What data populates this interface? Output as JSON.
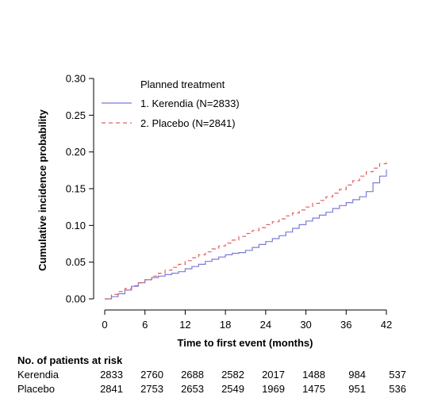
{
  "chart_data": {
    "type": "line",
    "xlabel": "Time to first event (months)",
    "ylabel": "Cumulative incidence probability",
    "xlim": [
      0,
      42
    ],
    "ylim": [
      0,
      0.3
    ],
    "x_ticks": [
      "0",
      "6",
      "12",
      "18",
      "24",
      "30",
      "36",
      "42"
    ],
    "y_ticks": [
      "0.00",
      "0.05",
      "0.10",
      "0.15",
      "0.20",
      "0.25",
      "0.30"
    ],
    "grid": false,
    "legend": {
      "title": "Planned treatment",
      "position": "top-left"
    },
    "series": [
      {
        "name": "1. Kerendia (N=2833)",
        "color": "#7b7bd9",
        "style": "solid",
        "points": [
          [
            0,
            0
          ],
          [
            1,
            0.003
          ],
          [
            2,
            0.007
          ],
          [
            3,
            0.012
          ],
          [
            4,
            0.017
          ],
          [
            5,
            0.022
          ],
          [
            6,
            0.026
          ],
          [
            7,
            0.029
          ],
          [
            8,
            0.031
          ],
          [
            9,
            0.033
          ],
          [
            10,
            0.035
          ],
          [
            11,
            0.037
          ],
          [
            12,
            0.041
          ],
          [
            13,
            0.044
          ],
          [
            14,
            0.047
          ],
          [
            15,
            0.051
          ],
          [
            16,
            0.054
          ],
          [
            17,
            0.057
          ],
          [
            18,
            0.06
          ],
          [
            19,
            0.062
          ],
          [
            20,
            0.063
          ],
          [
            21,
            0.066
          ],
          [
            22,
            0.07
          ],
          [
            23,
            0.074
          ],
          [
            24,
            0.078
          ],
          [
            25,
            0.082
          ],
          [
            26,
            0.086
          ],
          [
            27,
            0.091
          ],
          [
            28,
            0.096
          ],
          [
            29,
            0.101
          ],
          [
            30,
            0.106
          ],
          [
            31,
            0.11
          ],
          [
            32,
            0.114
          ],
          [
            33,
            0.118
          ],
          [
            34,
            0.123
          ],
          [
            35,
            0.127
          ],
          [
            36,
            0.131
          ],
          [
            37,
            0.135
          ],
          [
            38,
            0.139
          ],
          [
            39,
            0.146
          ],
          [
            40,
            0.158
          ],
          [
            41,
            0.167
          ],
          [
            42,
            0.176
          ]
        ]
      },
      {
        "name": "2. Placebo (N=2841)",
        "color": "#e06060",
        "style": "dashed",
        "points": [
          [
            0,
            0
          ],
          [
            1,
            0.006
          ],
          [
            2,
            0.01
          ],
          [
            3,
            0.014
          ],
          [
            4,
            0.018
          ],
          [
            5,
            0.022
          ],
          [
            6,
            0.026
          ],
          [
            7,
            0.031
          ],
          [
            8,
            0.035
          ],
          [
            9,
            0.039
          ],
          [
            10,
            0.043
          ],
          [
            11,
            0.047
          ],
          [
            12,
            0.052
          ],
          [
            13,
            0.056
          ],
          [
            14,
            0.06
          ],
          [
            15,
            0.064
          ],
          [
            16,
            0.068
          ],
          [
            17,
            0.072
          ],
          [
            18,
            0.076
          ],
          [
            19,
            0.08
          ],
          [
            20,
            0.085
          ],
          [
            21,
            0.089
          ],
          [
            22,
            0.093
          ],
          [
            23,
            0.097
          ],
          [
            24,
            0.101
          ],
          [
            25,
            0.105
          ],
          [
            26,
            0.109
          ],
          [
            27,
            0.113
          ],
          [
            28,
            0.117
          ],
          [
            29,
            0.121
          ],
          [
            30,
            0.125
          ],
          [
            31,
            0.13
          ],
          [
            32,
            0.134
          ],
          [
            33,
            0.139
          ],
          [
            34,
            0.144
          ],
          [
            35,
            0.149
          ],
          [
            36,
            0.155
          ],
          [
            37,
            0.161
          ],
          [
            38,
            0.167
          ],
          [
            39,
            0.173
          ],
          [
            40,
            0.178
          ],
          [
            41,
            0.184
          ],
          [
            42,
            0.189
          ]
        ]
      }
    ]
  },
  "risk_table": {
    "title": "No. of patients at risk",
    "rows": [
      {
        "label": "Kerendia",
        "values": [
          "2833",
          "2760",
          "2688",
          "2582",
          "2017",
          "1488",
          "984",
          "537"
        ]
      },
      {
        "label": "Placebo",
        "values": [
          "2841",
          "2753",
          "2653",
          "2549",
          "1969",
          "1475",
          "951",
          "536"
        ]
      }
    ]
  }
}
